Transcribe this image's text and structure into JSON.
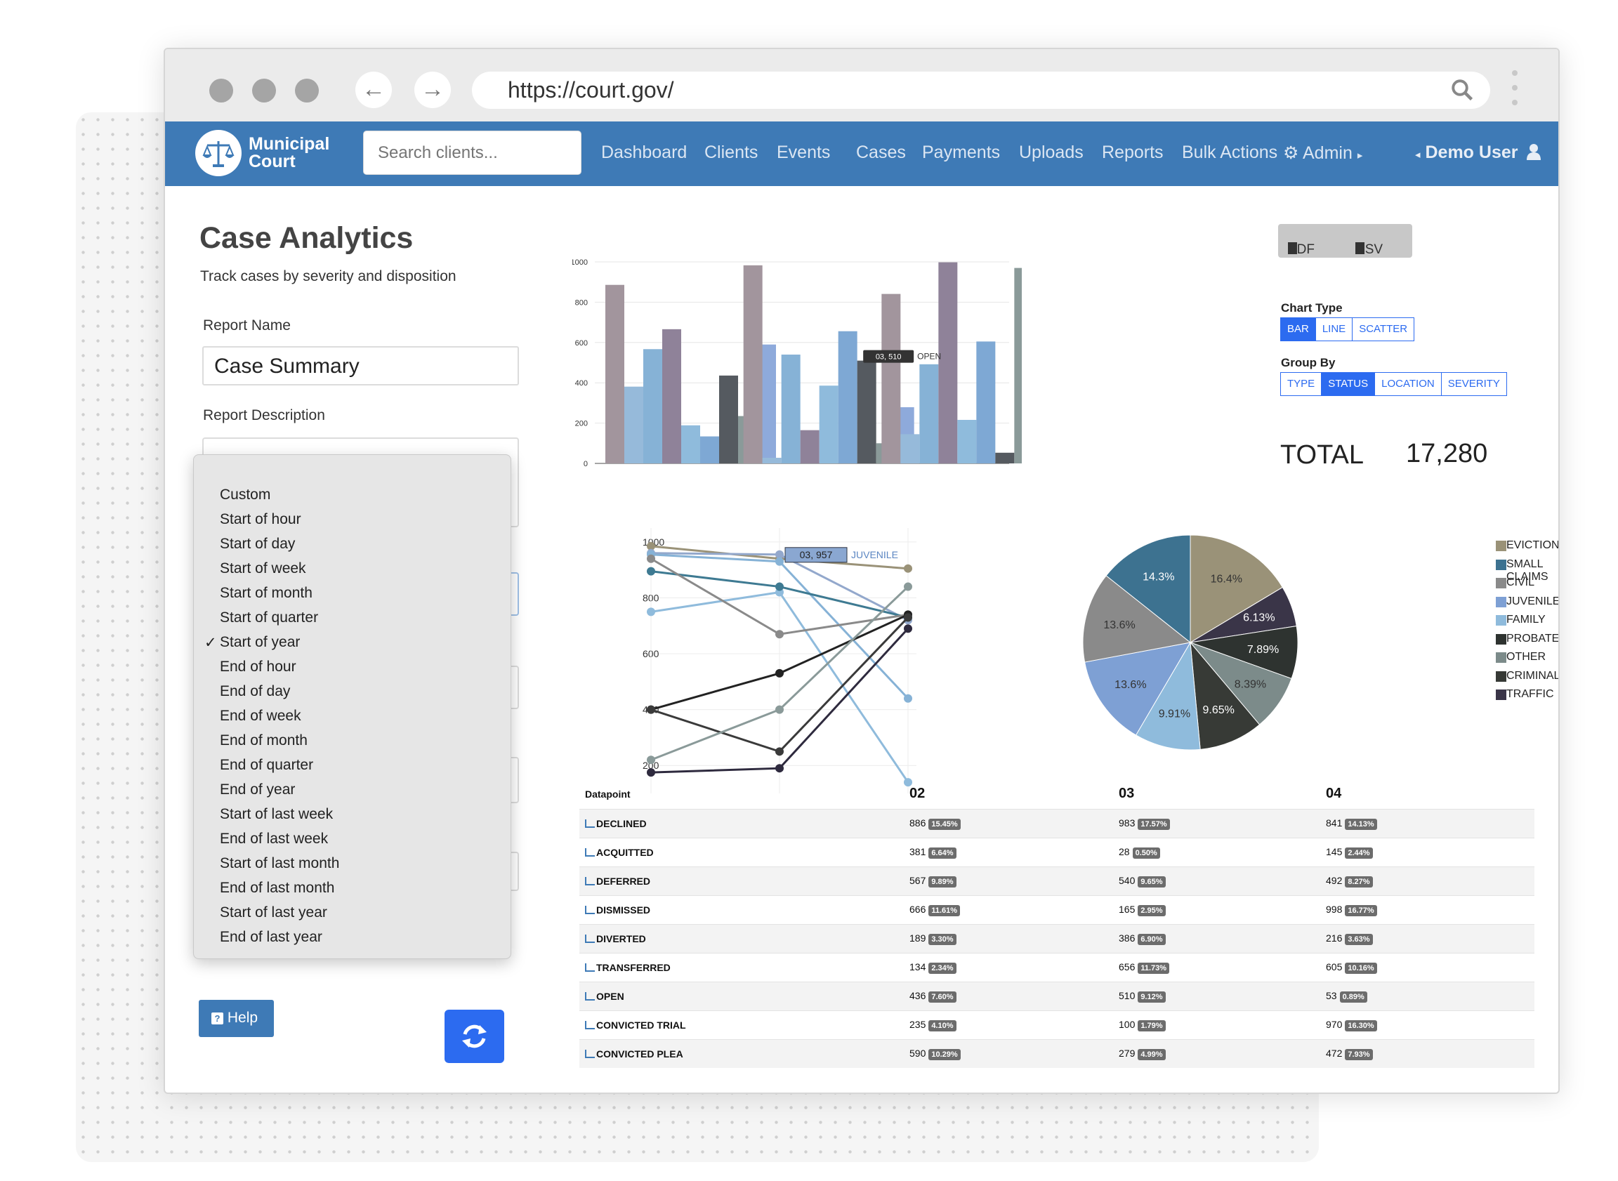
{
  "browser": {
    "url": "https://court.gov/"
  },
  "nav": {
    "brand_line1": "Municipal",
    "brand_line2": "Court",
    "search_placeholder": "Search clients...",
    "items": [
      "Dashboard",
      "Clients",
      "Events",
      "Cases",
      "Payments",
      "Uploads",
      "Reports",
      "Bulk Actions",
      "Admin"
    ],
    "user": "Demo User"
  },
  "page": {
    "title": "Case Analytics",
    "subtitle": "Track cases by severity and disposition",
    "report_name_label": "Report Name",
    "report_name_value": "Case Summary",
    "report_description_label": "Report Description",
    "help_label": "Help"
  },
  "dropdown": {
    "options": [
      "Custom",
      "Start of hour",
      "Start of day",
      "Start of week",
      "Start of month",
      "Start of quarter",
      "Start of year",
      "End of hour",
      "End of day",
      "End of week",
      "End of month",
      "End of quarter",
      "End of year",
      "Start of last week",
      "End of last week",
      "Start of last month",
      "End of last month",
      "Start of last year",
      "End of last year"
    ],
    "selected": "Start of year"
  },
  "controls": {
    "export_pdf": "PDF",
    "export_csv": "CSV",
    "chart_type_label": "Chart Type",
    "chart_types": [
      "BAR",
      "LINE",
      "SCATTER"
    ],
    "chart_type_selected": "BAR",
    "group_by_label": "Group By",
    "group_by": [
      "TYPE",
      "STATUS",
      "LOCATION",
      "SEVERITY"
    ],
    "group_by_selected": "STATUS",
    "total_label": "TOTAL",
    "total_value": "17,280"
  },
  "colors": {
    "nav": "#3e7ab6",
    "accent": "#2c6bf0"
  },
  "chart_data": [
    {
      "type": "bar",
      "categories": [
        "02",
        "03",
        "04"
      ],
      "ylim": [
        0,
        1000
      ],
      "yticks": [
        0,
        200,
        400,
        600,
        800,
        1000
      ],
      "grid": true,
      "series": [
        {
          "name": "DECLINED",
          "color": "#a2959d",
          "values": [
            886,
            983,
            841
          ]
        },
        {
          "name": "ACQUITTED",
          "color": "#96bada",
          "values": [
            381,
            28,
            145
          ]
        },
        {
          "name": "DEFERRED",
          "color": "#86b2d6",
          "values": [
            567,
            540,
            492
          ]
        },
        {
          "name": "DISMISSED",
          "color": "#8f8299",
          "values": [
            666,
            165,
            998
          ]
        },
        {
          "name": "DIVERTED",
          "color": "#8fbbdc",
          "values": [
            189,
            386,
            216
          ]
        },
        {
          "name": "TRANSFERRED",
          "color": "#7ea8d4",
          "values": [
            134,
            656,
            605
          ]
        },
        {
          "name": "OPEN",
          "color": "#555a60",
          "values": [
            436,
            510,
            53
          ]
        },
        {
          "name": "CONVICTED TRIAL",
          "color": "#8a9a99",
          "values": [
            235,
            100,
            970
          ]
        },
        {
          "name": "CONVICTED PLEA",
          "color": "#8eaadb",
          "values": [
            590,
            279,
            472
          ]
        }
      ],
      "tooltip": {
        "text": "03, 510",
        "label": "OPEN"
      }
    },
    {
      "type": "line",
      "ylim": [
        100,
        1050
      ],
      "yticks": [
        200,
        400,
        600,
        800,
        1000
      ],
      "grid": true,
      "series": [
        {
          "color": "#9a9278",
          "values": [
            985,
            940,
            905
          ]
        },
        {
          "color": "#93a8cc",
          "values": [
            960,
            955,
            720
          ]
        },
        {
          "color": "#86b2d6",
          "values": [
            955,
            930,
            440
          ]
        },
        {
          "color": "#8fbbdc",
          "values": [
            750,
            820,
            140
          ]
        },
        {
          "color": "#3e7a92",
          "values": [
            895,
            840,
            730
          ]
        },
        {
          "color": "#8a8a8a",
          "values": [
            940,
            670,
            740
          ]
        },
        {
          "color": "#222222",
          "values": [
            400,
            530,
            740
          ]
        },
        {
          "color": "#3a3a3a",
          "values": [
            400,
            250,
            730
          ]
        },
        {
          "color": "#8a9a99",
          "values": [
            220,
            400,
            840
          ]
        },
        {
          "color": "#2e2a3e",
          "values": [
            175,
            190,
            690
          ]
        }
      ],
      "tooltip": {
        "text": "03, 957",
        "label": "JUVENILE"
      }
    },
    {
      "type": "pie",
      "slices": [
        {
          "label": "EVICTION",
          "value": 16.4,
          "display": "16.4%",
          "color": "#9a9278"
        },
        {
          "label": "TRAFFIC",
          "value": 6.13,
          "display": "6.13%",
          "color": "#3a3548"
        },
        {
          "label": "PROBATE",
          "value": 7.89,
          "display": "7.89%",
          "color": "#2e3330"
        },
        {
          "label": "OTHER",
          "value": 8.39,
          "display": "8.39%",
          "color": "#7c8b8a"
        },
        {
          "label": "CRIMINAL",
          "value": 9.65,
          "display": "9.65%",
          "color": "#373a36"
        },
        {
          "label": "FAMILY",
          "value": 9.91,
          "display": "9.91%",
          "color": "#8fbbdc"
        },
        {
          "label": "JUVENILE",
          "value": 13.6,
          "display": "13.6%",
          "color": "#7ea0d4"
        },
        {
          "label": "CIVIL",
          "value": 13.6,
          "display": "13.6%",
          "color": "#8a8a8a"
        },
        {
          "label": "SMALL CLAIMS",
          "value": 14.3,
          "display": "14.3%",
          "color": "#3d7290"
        }
      ],
      "legend": [
        "EVICTION",
        "SMALL CLAIMS",
        "CIVIL",
        "JUVENILE",
        "FAMILY",
        "PROBATE",
        "OTHER",
        "CRIMINAL",
        "TRAFFIC"
      ],
      "legend_colors": [
        "#9a9278",
        "#3d7290",
        "#8a8a8a",
        "#7ea0d4",
        "#8fbbdc",
        "#2e3330",
        "#7c8b8a",
        "#373a36",
        "#3a3548"
      ]
    },
    {
      "type": "table",
      "header": {
        "label": "Datapoint",
        "cols": [
          "02",
          "03",
          "04"
        ]
      },
      "rows": [
        {
          "name": "DECLINED",
          "v1": "886",
          "p1": "15.45%",
          "v2": "983",
          "p2": "17.57%",
          "v3": "841",
          "p3": "14.13%"
        },
        {
          "name": "ACQUITTED",
          "v1": "381",
          "p1": "6.64%",
          "v2": "28",
          "p2": "0.50%",
          "v3": "145",
          "p3": "2.44%"
        },
        {
          "name": "DEFERRED",
          "v1": "567",
          "p1": "9.89%",
          "v2": "540",
          "p2": "9.65%",
          "v3": "492",
          "p3": "8.27%"
        },
        {
          "name": "DISMISSED",
          "v1": "666",
          "p1": "11.61%",
          "v2": "165",
          "p2": "2.95%",
          "v3": "998",
          "p3": "16.77%"
        },
        {
          "name": "DIVERTED",
          "v1": "189",
          "p1": "3.30%",
          "v2": "386",
          "p2": "6.90%",
          "v3": "216",
          "p3": "3.63%"
        },
        {
          "name": "TRANSFERRED",
          "v1": "134",
          "p1": "2.34%",
          "v2": "656",
          "p2": "11.73%",
          "v3": "605",
          "p3": "10.16%"
        },
        {
          "name": "OPEN",
          "v1": "436",
          "p1": "7.60%",
          "v2": "510",
          "p2": "9.12%",
          "v3": "53",
          "p3": "0.89%"
        },
        {
          "name": "CONVICTED TRIAL",
          "v1": "235",
          "p1": "4.10%",
          "v2": "100",
          "p2": "1.79%",
          "v3": "970",
          "p3": "16.30%"
        },
        {
          "name": "CONVICTED PLEA",
          "v1": "590",
          "p1": "10.29%",
          "v2": "279",
          "p2": "4.99%",
          "v3": "472",
          "p3": "7.93%"
        }
      ]
    }
  ]
}
